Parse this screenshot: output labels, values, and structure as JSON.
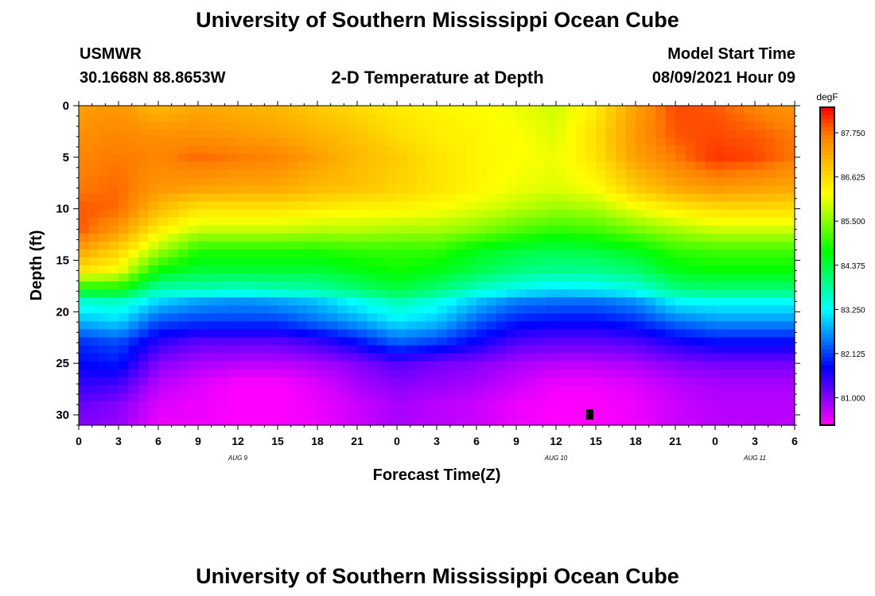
{
  "page": {
    "title_top": "University of Southern Mississippi Ocean Cube",
    "title_bottom": "University of Southern Mississippi Ocean Cube",
    "station": "USMWR",
    "location": "30.1668N  88.8653W",
    "plot_title": "2-D Temperature at Depth",
    "model_label": "Model Start Time",
    "model_time": "08/09/2021 Hour 09"
  },
  "chart_data": {
    "type": "heatmap",
    "title": "2-D Temperature at Depth",
    "xlabel": "Forecast Time(Z)",
    "ylabel": "Depth (ft)",
    "x_hours_range": [
      0,
      54
    ],
    "y_range": [
      0,
      31
    ],
    "x_tick_hours": [
      0,
      3,
      6,
      9,
      12,
      15,
      18,
      21,
      24,
      27,
      30,
      33,
      36,
      39,
      42,
      45,
      48,
      51,
      54
    ],
    "x_tick_labels": [
      "0",
      "3",
      "6",
      "9",
      "12",
      "15",
      "18",
      "21",
      "0",
      "3",
      "6",
      "9",
      "12",
      "15",
      "18",
      "21",
      "0",
      "3",
      "6"
    ],
    "y_ticks": [
      0,
      5,
      10,
      15,
      20,
      25,
      30
    ],
    "y_tick_labels": [
      "0",
      "5",
      "10",
      "15",
      "20",
      "25",
      "30"
    ],
    "date_labels": [
      {
        "hour": 12,
        "text": "AUG  9"
      },
      {
        "hour": 36,
        "text": "AUG  10"
      },
      {
        "hour": 51,
        "text": "AUG  11"
      }
    ],
    "colorbar": {
      "unit": "degF",
      "range": [
        80.3,
        88.4
      ],
      "tick_values": [
        81.0,
        82.125,
        83.25,
        84.375,
        85.5,
        86.625,
        87.75
      ],
      "tick_labels": [
        "81.000",
        "82.125",
        "83.250",
        "84.375",
        "85.500",
        "86.625",
        "87.750"
      ],
      "colors": [
        "#ff00ff",
        "#7f00ff",
        "#0000ff",
        "#0080ff",
        "#00ffff",
        "#00ff80",
        "#00ff00",
        "#80ff00",
        "#ffff00",
        "#ffc000",
        "#ff8000",
        "#ff0000"
      ]
    },
    "grid_columns_hours": [
      0,
      3,
      6,
      9,
      12,
      15,
      18,
      21,
      24,
      27,
      30,
      33,
      36,
      39,
      42,
      45,
      48,
      51,
      54
    ],
    "profile_depths": [
      0,
      3,
      5,
      8,
      10,
      12,
      14,
      16,
      18,
      19,
      21,
      23,
      25,
      27,
      29,
      31
    ],
    "temperature_profiles": [
      [
        87.3,
        87.5,
        87.6,
        87.7,
        87.9,
        87.9,
        87.3,
        86.5,
        84.5,
        83.5,
        82.8,
        82.0,
        81.8,
        81.5,
        81.2,
        81.0
      ],
      [
        87.4,
        87.6,
        87.7,
        87.8,
        87.8,
        87.4,
        86.7,
        86.2,
        84.6,
        83.6,
        83.0,
        82.2,
        81.9,
        81.4,
        81.0,
        80.9
      ],
      [
        87.0,
        87.5,
        87.6,
        87.4,
        87.0,
        86.4,
        85.7,
        84.7,
        83.6,
        83.0,
        82.2,
        81.5,
        81.0,
        80.7,
        80.5,
        80.4
      ],
      [
        87.2,
        87.5,
        87.8,
        87.3,
        86.5,
        85.9,
        84.9,
        84.4,
        83.6,
        82.7,
        82.1,
        81.2,
        80.8,
        80.5,
        80.4,
        80.4
      ],
      [
        87.1,
        87.4,
        87.7,
        87.2,
        86.5,
        85.9,
        84.9,
        84.4,
        83.5,
        82.6,
        82.1,
        81.2,
        80.7,
        80.3,
        80.3,
        80.3
      ],
      [
        87.0,
        87.3,
        87.6,
        87.2,
        86.5,
        85.9,
        84.9,
        84.4,
        83.6,
        82.7,
        82.1,
        81.2,
        80.7,
        80.3,
        80.3,
        80.3
      ],
      [
        86.8,
        87.1,
        87.3,
        87.0,
        86.4,
        85.8,
        84.9,
        84.4,
        83.7,
        82.9,
        82.4,
        81.4,
        80.8,
        80.5,
        80.4,
        80.4
      ],
      [
        86.6,
        86.9,
        87.0,
        86.9,
        86.3,
        85.8,
        85.0,
        84.6,
        84.0,
        83.3,
        82.7,
        81.8,
        81.0,
        80.8,
        80.6,
        80.6
      ],
      [
        86.4,
        86.6,
        86.8,
        86.7,
        86.3,
        85.7,
        85.0,
        84.8,
        84.3,
        83.7,
        83.1,
        82.3,
        81.3,
        81.0,
        80.8,
        80.8
      ],
      [
        86.3,
        86.4,
        86.5,
        86.5,
        86.2,
        85.7,
        85.0,
        84.6,
        84.0,
        83.4,
        82.9,
        82.1,
        81.1,
        80.9,
        80.7,
        80.7
      ],
      [
        86.2,
        86.3,
        86.3,
        86.3,
        86.0,
        85.5,
        84.6,
        84.3,
        83.5,
        82.9,
        82.3,
        81.7,
        81.0,
        80.8,
        80.6,
        80.6
      ],
      [
        86.1,
        86.2,
        86.2,
        86.1,
        85.8,
        85.2,
        84.4,
        84.0,
        83.2,
        82.5,
        81.9,
        81.3,
        80.8,
        80.6,
        80.4,
        80.4
      ],
      [
        85.9,
        86.0,
        86.1,
        86.0,
        85.6,
        85.0,
        84.3,
        83.9,
        83.0,
        82.4,
        81.8,
        81.2,
        80.7,
        80.4,
        80.3,
        80.3
      ],
      [
        86.4,
        86.6,
        86.5,
        86.2,
        85.7,
        85.1,
        84.4,
        83.9,
        83.1,
        82.4,
        81.8,
        81.2,
        80.7,
        80.4,
        80.3,
        80.3
      ],
      [
        87.3,
        87.4,
        87.3,
        86.8,
        86.1,
        85.4,
        84.6,
        84.1,
        83.3,
        82.6,
        82.0,
        81.3,
        80.8,
        80.5,
        80.4,
        80.4
      ],
      [
        88.0,
        87.9,
        87.7,
        87.2,
        86.4,
        85.7,
        85.0,
        84.6,
        83.9,
        83.2,
        82.4,
        81.6,
        81.0,
        80.7,
        80.6,
        80.6
      ],
      [
        87.9,
        88.0,
        88.1,
        87.4,
        86.6,
        85.9,
        85.1,
        84.7,
        84.0,
        83.3,
        82.6,
        81.8,
        81.1,
        80.8,
        80.7,
        80.7
      ],
      [
        87.6,
        87.9,
        88.0,
        87.3,
        86.6,
        85.9,
        85.1,
        84.7,
        84.0,
        83.3,
        82.6,
        81.8,
        81.1,
        80.8,
        80.7,
        80.7
      ],
      [
        87.4,
        87.7,
        87.7,
        87.2,
        86.6,
        85.9,
        85.1,
        84.7,
        84.0,
        83.3,
        82.6,
        81.8,
        81.1,
        80.8,
        80.7,
        80.7
      ]
    ]
  }
}
